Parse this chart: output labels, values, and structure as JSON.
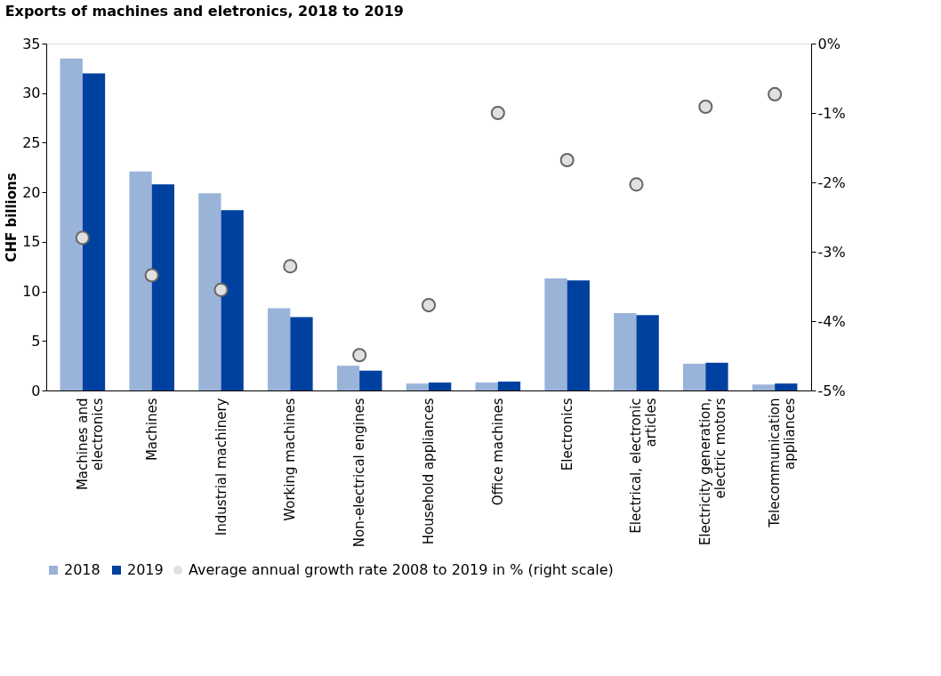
{
  "chart_data": {
    "type": "bar",
    "title": "Exports of machines and eletronics, 2018 to 2019",
    "ylabel": "CHF billions",
    "categories": [
      "Machines and\nelectronics",
      "Machines",
      "Industrial machinery",
      "Working machines",
      "Non-electrical engines",
      "Household appliances",
      "Office machines",
      "Electronics",
      "Electrical, electronic\narticles",
      "Electricity generation,\nelectric motors",
      "Telecommunication\nappliances"
    ],
    "ylim": [
      0,
      35
    ],
    "yticks": [
      0,
      5,
      10,
      15,
      20,
      25,
      30,
      35
    ],
    "y2lim": [
      -5,
      0
    ],
    "y2ticks": [
      {
        "value": -5,
        "label": "-5%"
      },
      {
        "value": -4,
        "label": "-4%"
      },
      {
        "value": -3,
        "label": "-3%"
      },
      {
        "value": -2,
        "label": "-2%"
      },
      {
        "value": -1,
        "label": "-1%"
      },
      {
        "value": 0,
        "label": "0%"
      }
    ],
    "grid": false,
    "legend": "bottom",
    "series": [
      {
        "name": "2018",
        "color": "#9ab3d9",
        "values": [
          33.5,
          22.1,
          19.9,
          8.3,
          2.5,
          0.7,
          0.8,
          11.3,
          7.8,
          2.7,
          0.6
        ]
      },
      {
        "name": "2019",
        "color": "#0041a0",
        "values": [
          32.0,
          20.8,
          18.2,
          7.4,
          2.0,
          0.8,
          0.9,
          11.1,
          7.6,
          2.8,
          0.7
        ]
      },
      {
        "name": "Average annual growth rate 2008 to 2019 in % (right scale)",
        "type": "scatter",
        "axis": "y2",
        "marker": "circle",
        "color": "#e0e0e0",
        "values": [
          -2.8,
          -3.34,
          -3.55,
          -3.21,
          -4.49,
          -3.77,
          -1.0,
          -1.68,
          -2.03,
          -0.91,
          -0.73
        ]
      }
    ]
  }
}
